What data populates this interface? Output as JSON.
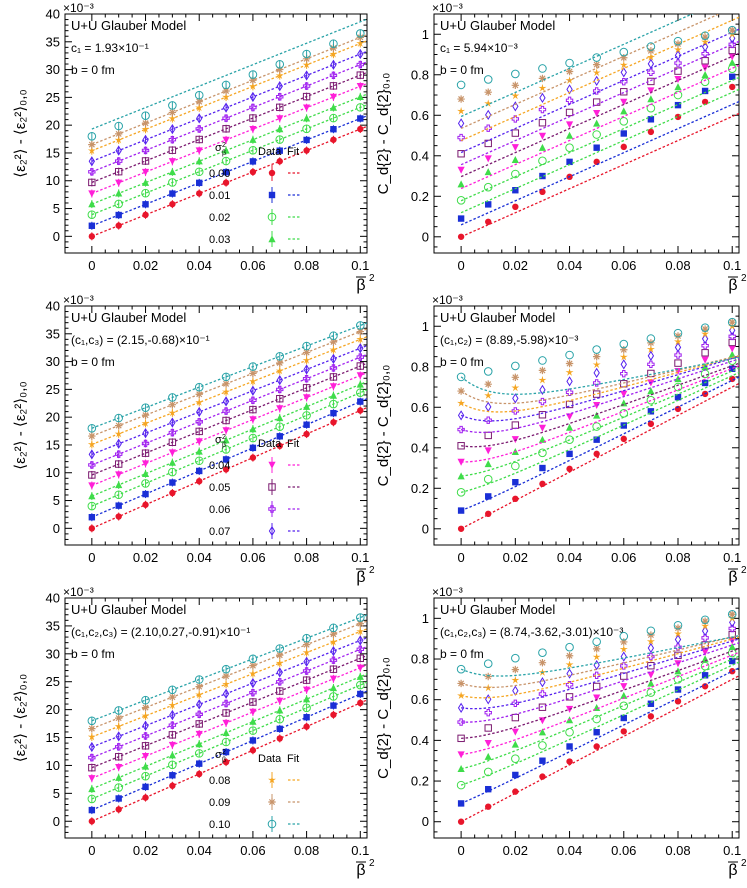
{
  "figure": {
    "x_axis_label": "β̄²",
    "x_ticks": [
      "0",
      "0.02",
      "0.04",
      "0.06",
      "0.08",
      "0.1"
    ],
    "left_ylabel": "⟨ε₂²⟩ - ⟨ε₂²⟩₀,₀",
    "right_ylabel": "C_d{2} - C_d{2}₀,₀",
    "left_multiplier": "×10⁻³",
    "right_multiplier": "×10⁻³",
    "left_yticks": [
      "0",
      "5",
      "10",
      "15",
      "20",
      "25",
      "30",
      "35",
      "40"
    ],
    "right_yticks": [
      "0",
      "0.2",
      "0.4",
      "0.6",
      "0.8",
      "1"
    ],
    "legend_header_sigma": "σ²β",
    "legend_header_data": "Data",
    "legend_header_fit": "Fit"
  },
  "series_styles": [
    {
      "sigma": "0.00",
      "color": "#e8152b",
      "marker": "circle-filled"
    },
    {
      "sigma": "0.01",
      "color": "#1a2fd6",
      "marker": "square-filled"
    },
    {
      "sigma": "0.02",
      "color": "#3fdc4a",
      "marker": "circle-open"
    },
    {
      "sigma": "0.03",
      "color": "#3fdc4a",
      "marker": "triangle-filled"
    },
    {
      "sigma": "0.04",
      "color": "#ff1fd8",
      "marker": "triangle-down-filled"
    },
    {
      "sigma": "0.05",
      "color": "#7b1a70",
      "marker": "square-open"
    },
    {
      "sigma": "0.06",
      "color": "#a020f0",
      "marker": "cross-open"
    },
    {
      "sigma": "0.07",
      "color": "#5522ee",
      "marker": "diamond-open"
    },
    {
      "sigma": "0.08",
      "color": "#f5a623",
      "marker": "star"
    },
    {
      "sigma": "0.09",
      "color": "#c8946a",
      "marker": "asterisk"
    },
    {
      "sigma": "0.10",
      "color": "#2aa3a8",
      "marker": "circle-open"
    }
  ],
  "chart_data": [
    {
      "type": "scatter",
      "panel": "left-1",
      "title": "U+U Glauber Model",
      "param": "c₁ = 1.93×10⁻¹",
      "impact": "b = 0 fm",
      "xlabel": "β̄²",
      "ylabel": "⟨ε₂²⟩ - ⟨ε₂²⟩₀,₀ (×10⁻³)",
      "xlim": [
        -0.01,
        0.1025
      ],
      "ylim": [
        -3,
        40
      ],
      "x": [
        0,
        0.01,
        0.02,
        0.03,
        0.04,
        0.05,
        0.06,
        0.07,
        0.08,
        0.09,
        0.1
      ],
      "legend": [
        "0.00",
        "0.01",
        "0.02",
        "0.03"
      ],
      "series": [
        {
          "name": "0.00",
          "offset": 0.0,
          "slope": 193,
          "fit_offset": 0.0,
          "fit_slope": 193
        },
        {
          "name": "0.01",
          "offset": 1.9,
          "slope": 193,
          "fit_offset": 1.9,
          "fit_slope": 193
        },
        {
          "name": "0.02",
          "offset": 3.9,
          "slope": 193,
          "fit_offset": 3.9,
          "fit_slope": 193
        },
        {
          "name": "0.03",
          "offset": 5.8,
          "slope": 193,
          "fit_offset": 5.8,
          "fit_slope": 193
        },
        {
          "name": "0.04",
          "offset": 7.7,
          "slope": 193,
          "fit_offset": 7.7,
          "fit_slope": 193
        },
        {
          "name": "0.05",
          "offset": 9.7,
          "slope": 193,
          "fit_offset": 9.7,
          "fit_slope": 193
        },
        {
          "name": "0.06",
          "offset": 11.6,
          "slope": 193,
          "fit_offset": 11.6,
          "fit_slope": 193
        },
        {
          "name": "0.07",
          "offset": 13.5,
          "slope": 193,
          "fit_offset": 13.5,
          "fit_slope": 193
        },
        {
          "name": "0.08",
          "offset": 15.4,
          "slope": 193,
          "fit_offset": 15.4,
          "fit_slope": 193
        },
        {
          "name": "0.09",
          "offset": 16.5,
          "slope": 193,
          "fit_offset": 16.5,
          "fit_slope": 193
        },
        {
          "name": "0.10",
          "offset": 18.0,
          "slope": 185,
          "fit_offset": 19.3,
          "fit_slope": 193
        }
      ]
    },
    {
      "type": "scatter",
      "panel": "right-1",
      "title": "U+U Glauber Model",
      "param": "c₁ = 5.94×10⁻³",
      "impact": "b = 0 fm",
      "xlabel": "β̄²",
      "ylabel": "C_d{2} - C_d{2}₀,₀ (×10⁻³)",
      "xlim": [
        -0.01,
        0.1025
      ],
      "ylim": [
        -0.08,
        1.1
      ],
      "x": [
        0,
        0.01,
        0.02,
        0.03,
        0.04,
        0.05,
        0.06,
        0.07,
        0.08,
        0.09,
        0.1
      ],
      "series": [
        {
          "name": "0.00",
          "offset": 0.0,
          "slope": 7.4,
          "fit_offset": 0.0,
          "fit_slope": 5.94
        },
        {
          "name": "0.01",
          "offset": 0.09,
          "slope": 7.0,
          "fit_offset": 0.059,
          "fit_slope": 5.94
        },
        {
          "name": "0.02",
          "offset": 0.18,
          "slope": 6.5,
          "fit_offset": 0.119,
          "fit_slope": 5.94
        },
        {
          "name": "0.03",
          "offset": 0.26,
          "slope": 6.0,
          "fit_offset": 0.178,
          "fit_slope": 5.94
        },
        {
          "name": "0.04",
          "offset": 0.33,
          "slope": 5.6,
          "fit_offset": 0.238,
          "fit_slope": 5.94
        },
        {
          "name": "0.05",
          "offset": 0.41,
          "slope": 5.1,
          "fit_offset": 0.297,
          "fit_slope": 5.94
        },
        {
          "name": "0.06",
          "offset": 0.49,
          "slope": 4.6,
          "fit_offset": 0.356,
          "fit_slope": 5.94
        },
        {
          "name": "0.07",
          "offset": 0.56,
          "slope": 4.2,
          "fit_offset": 0.416,
          "fit_slope": 5.94
        },
        {
          "name": "0.08",
          "offset": 0.62,
          "slope": 3.8,
          "fit_offset": 0.475,
          "fit_slope": 5.94
        },
        {
          "name": "0.09",
          "offset": 0.68,
          "slope": 3.4,
          "fit_offset": 0.535,
          "fit_slope": 5.94
        },
        {
          "name": "0.10",
          "offset": 0.75,
          "slope": 2.7,
          "fit_offset": 0.594,
          "fit_slope": 5.94
        }
      ]
    },
    {
      "type": "scatter",
      "panel": "left-2",
      "title": "U+U Glauber Model",
      "param": "(c₁,c₃) = (2.15,-0.68)×10⁻¹",
      "impact": "b = 0 fm",
      "xlabel": "β̄²",
      "ylabel": "⟨ε₂²⟩ - ⟨ε₂²⟩₀,₀ (×10⁻³)",
      "xlim": [
        -0.01,
        0.1025
      ],
      "ylim": [
        -3,
        40
      ],
      "x": [
        0,
        0.01,
        0.02,
        0.03,
        0.04,
        0.05,
        0.06,
        0.07,
        0.08,
        0.09,
        0.1
      ],
      "legend": [
        "0.04",
        "0.05",
        "0.06",
        "0.07"
      ],
      "series": [
        {
          "name": "0.00",
          "offset": 0.0,
          "slope": 212,
          "fit_offset": 0.0,
          "fit_slope": 212
        },
        {
          "name": "0.01",
          "offset": 2.0,
          "slope": 208,
          "fit_offset": 2.0,
          "fit_slope": 208
        },
        {
          "name": "0.02",
          "offset": 4.0,
          "slope": 204,
          "fit_offset": 4.0,
          "fit_slope": 204
        },
        {
          "name": "0.03",
          "offset": 5.8,
          "slope": 201,
          "fit_offset": 5.8,
          "fit_slope": 201
        },
        {
          "name": "0.04",
          "offset": 7.7,
          "slope": 198,
          "fit_offset": 7.7,
          "fit_slope": 198
        },
        {
          "name": "0.05",
          "offset": 9.6,
          "slope": 196,
          "fit_offset": 9.6,
          "fit_slope": 196
        },
        {
          "name": "0.06",
          "offset": 11.4,
          "slope": 194,
          "fit_offset": 11.4,
          "fit_slope": 194
        },
        {
          "name": "0.07",
          "offset": 13.3,
          "slope": 191,
          "fit_offset": 13.3,
          "fit_slope": 191
        },
        {
          "name": "0.08",
          "offset": 15.1,
          "slope": 189,
          "fit_offset": 15.1,
          "fit_slope": 189
        },
        {
          "name": "0.09",
          "offset": 16.6,
          "slope": 188,
          "fit_offset": 16.6,
          "fit_slope": 188
        },
        {
          "name": "0.10",
          "offset": 18.0,
          "slope": 185,
          "fit_offset": 18.0,
          "fit_slope": 185
        }
      ]
    },
    {
      "type": "scatter",
      "panel": "right-2",
      "title": "U+U Glauber Model",
      "param": "(c₁,c₂) = (8.89,-5.98)×10⁻³",
      "impact": "b = 0 fm",
      "xlabel": "β̄²",
      "ylabel": "C_d{2} - C_d{2}₀,₀ (×10⁻³)",
      "xlim": [
        -0.01,
        0.1025
      ],
      "ylim": [
        -0.08,
        1.1
      ],
      "x": [
        0,
        0.01,
        0.02,
        0.03,
        0.04,
        0.05,
        0.06,
        0.07,
        0.08,
        0.09,
        0.1
      ],
      "series": [
        {
          "name": "0.00",
          "offset": 0.0,
          "slope": 7.4,
          "fit_offset": 0.0,
          "fit_slope": 7.0
        },
        {
          "name": "0.01",
          "offset": 0.09,
          "slope": 7.0,
          "fit_offset": 0.09,
          "fit_slope": 6.6
        },
        {
          "name": "0.02",
          "offset": 0.18,
          "slope": 6.5,
          "fit_offset": 0.18,
          "fit_slope": 6.1
        },
        {
          "name": "0.03",
          "offset": 0.26,
          "slope": 6.0,
          "fit_offset": 0.26,
          "fit_slope": 5.7
        },
        {
          "name": "0.04",
          "offset": 0.33,
          "slope": 5.6,
          "fit_offset": 0.33,
          "fit_slope": 5.3
        },
        {
          "name": "0.05",
          "offset": 0.41,
          "slope": 5.1,
          "fit_offset": 0.41,
          "fit_slope": 4.8
        },
        {
          "name": "0.06",
          "offset": 0.49,
          "slope": 4.6,
          "fit_offset": 0.49,
          "fit_slope": 4.4
        },
        {
          "name": "0.07",
          "offset": 0.56,
          "slope": 4.2,
          "fit_offset": 0.56,
          "fit_slope": 4.0
        },
        {
          "name": "0.08",
          "offset": 0.62,
          "slope": 3.8,
          "fit_offset": 0.62,
          "fit_slope": 3.6
        },
        {
          "name": "0.09",
          "offset": 0.68,
          "slope": 3.4,
          "fit_offset": 0.68,
          "fit_slope": 3.2
        },
        {
          "name": "0.10",
          "offset": 0.75,
          "slope": 2.7,
          "fit_offset": 0.75,
          "fit_slope": 2.6
        }
      ]
    },
    {
      "type": "scatter",
      "panel": "left-3",
      "title": "U+U Glauber Model",
      "param": "(c₁,c₂,c₃) = (2.10,0.27,-0.91)×10⁻¹",
      "impact": "b = 0 fm",
      "xlabel": "β̄²",
      "ylabel": "⟨ε₂²⟩ - ⟨ε₂²⟩₀,₀ (×10⁻³)",
      "xlim": [
        -0.01,
        0.1025
      ],
      "ylim": [
        -3,
        40
      ],
      "x": [
        0,
        0.01,
        0.02,
        0.03,
        0.04,
        0.05,
        0.06,
        0.07,
        0.08,
        0.09,
        0.1
      ],
      "legend": [
        "0.08",
        "0.09",
        "0.10"
      ],
      "series": [
        {
          "name": "0.00",
          "offset": 0.0,
          "slope": 212,
          "fit_offset": 0.0,
          "fit_slope": 212
        },
        {
          "name": "0.01",
          "offset": 2.0,
          "slope": 208,
          "fit_offset": 2.0,
          "fit_slope": 208
        },
        {
          "name": "0.02",
          "offset": 4.0,
          "slope": 204,
          "fit_offset": 4.0,
          "fit_slope": 204
        },
        {
          "name": "0.03",
          "offset": 5.8,
          "slope": 201,
          "fit_offset": 5.8,
          "fit_slope": 201
        },
        {
          "name": "0.04",
          "offset": 7.7,
          "slope": 198,
          "fit_offset": 7.7,
          "fit_slope": 198
        },
        {
          "name": "0.05",
          "offset": 9.6,
          "slope": 196,
          "fit_offset": 9.6,
          "fit_slope": 196
        },
        {
          "name": "0.06",
          "offset": 11.4,
          "slope": 194,
          "fit_offset": 11.4,
          "fit_slope": 194
        },
        {
          "name": "0.07",
          "offset": 13.3,
          "slope": 191,
          "fit_offset": 13.3,
          "fit_slope": 191
        },
        {
          "name": "0.08",
          "offset": 15.1,
          "slope": 189,
          "fit_offset": 15.1,
          "fit_slope": 189
        },
        {
          "name": "0.09",
          "offset": 16.6,
          "slope": 188,
          "fit_offset": 16.6,
          "fit_slope": 188
        },
        {
          "name": "0.10",
          "offset": 18.0,
          "slope": 185,
          "fit_offset": 18.0,
          "fit_slope": 185
        }
      ]
    },
    {
      "type": "scatter",
      "panel": "right-3",
      "title": "U+U Glauber Model",
      "param": "(c₁,c₂,c₃) = (8.74,-3.62,-3.01)×10⁻³",
      "impact": "b = 0 fm",
      "xlabel": "β̄²",
      "ylabel": "C_d{2} - C_d{2}₀,₀ (×10⁻³)",
      "xlim": [
        -0.01,
        0.1025
      ],
      "ylim": [
        -0.08,
        1.1
      ],
      "x": [
        0,
        0.01,
        0.02,
        0.03,
        0.04,
        0.05,
        0.06,
        0.07,
        0.08,
        0.09,
        0.1
      ],
      "series": [
        {
          "name": "0.00",
          "offset": 0.0,
          "slope": 7.4,
          "fit_offset": 0.0,
          "fit_slope": 7.0
        },
        {
          "name": "0.01",
          "offset": 0.09,
          "slope": 7.0,
          "fit_offset": 0.09,
          "fit_slope": 6.6
        },
        {
          "name": "0.02",
          "offset": 0.18,
          "slope": 6.5,
          "fit_offset": 0.18,
          "fit_slope": 6.1
        },
        {
          "name": "0.03",
          "offset": 0.26,
          "slope": 6.0,
          "fit_offset": 0.26,
          "fit_slope": 5.7
        },
        {
          "name": "0.04",
          "offset": 0.33,
          "slope": 5.6,
          "fit_offset": 0.33,
          "fit_slope": 5.3
        },
        {
          "name": "0.05",
          "offset": 0.41,
          "slope": 5.1,
          "fit_offset": 0.41,
          "fit_slope": 4.8
        },
        {
          "name": "0.06",
          "offset": 0.49,
          "slope": 4.6,
          "fit_offset": 0.49,
          "fit_slope": 4.4
        },
        {
          "name": "0.07",
          "offset": 0.56,
          "slope": 4.2,
          "fit_offset": 0.56,
          "fit_slope": 4.0
        },
        {
          "name": "0.08",
          "offset": 0.62,
          "slope": 3.8,
          "fit_offset": 0.62,
          "fit_slope": 3.6
        },
        {
          "name": "0.09",
          "offset": 0.68,
          "slope": 3.4,
          "fit_offset": 0.68,
          "fit_slope": 3.2
        },
        {
          "name": "0.10",
          "offset": 0.75,
          "slope": 2.7,
          "fit_offset": 0.75,
          "fit_slope": 2.6
        }
      ]
    }
  ]
}
